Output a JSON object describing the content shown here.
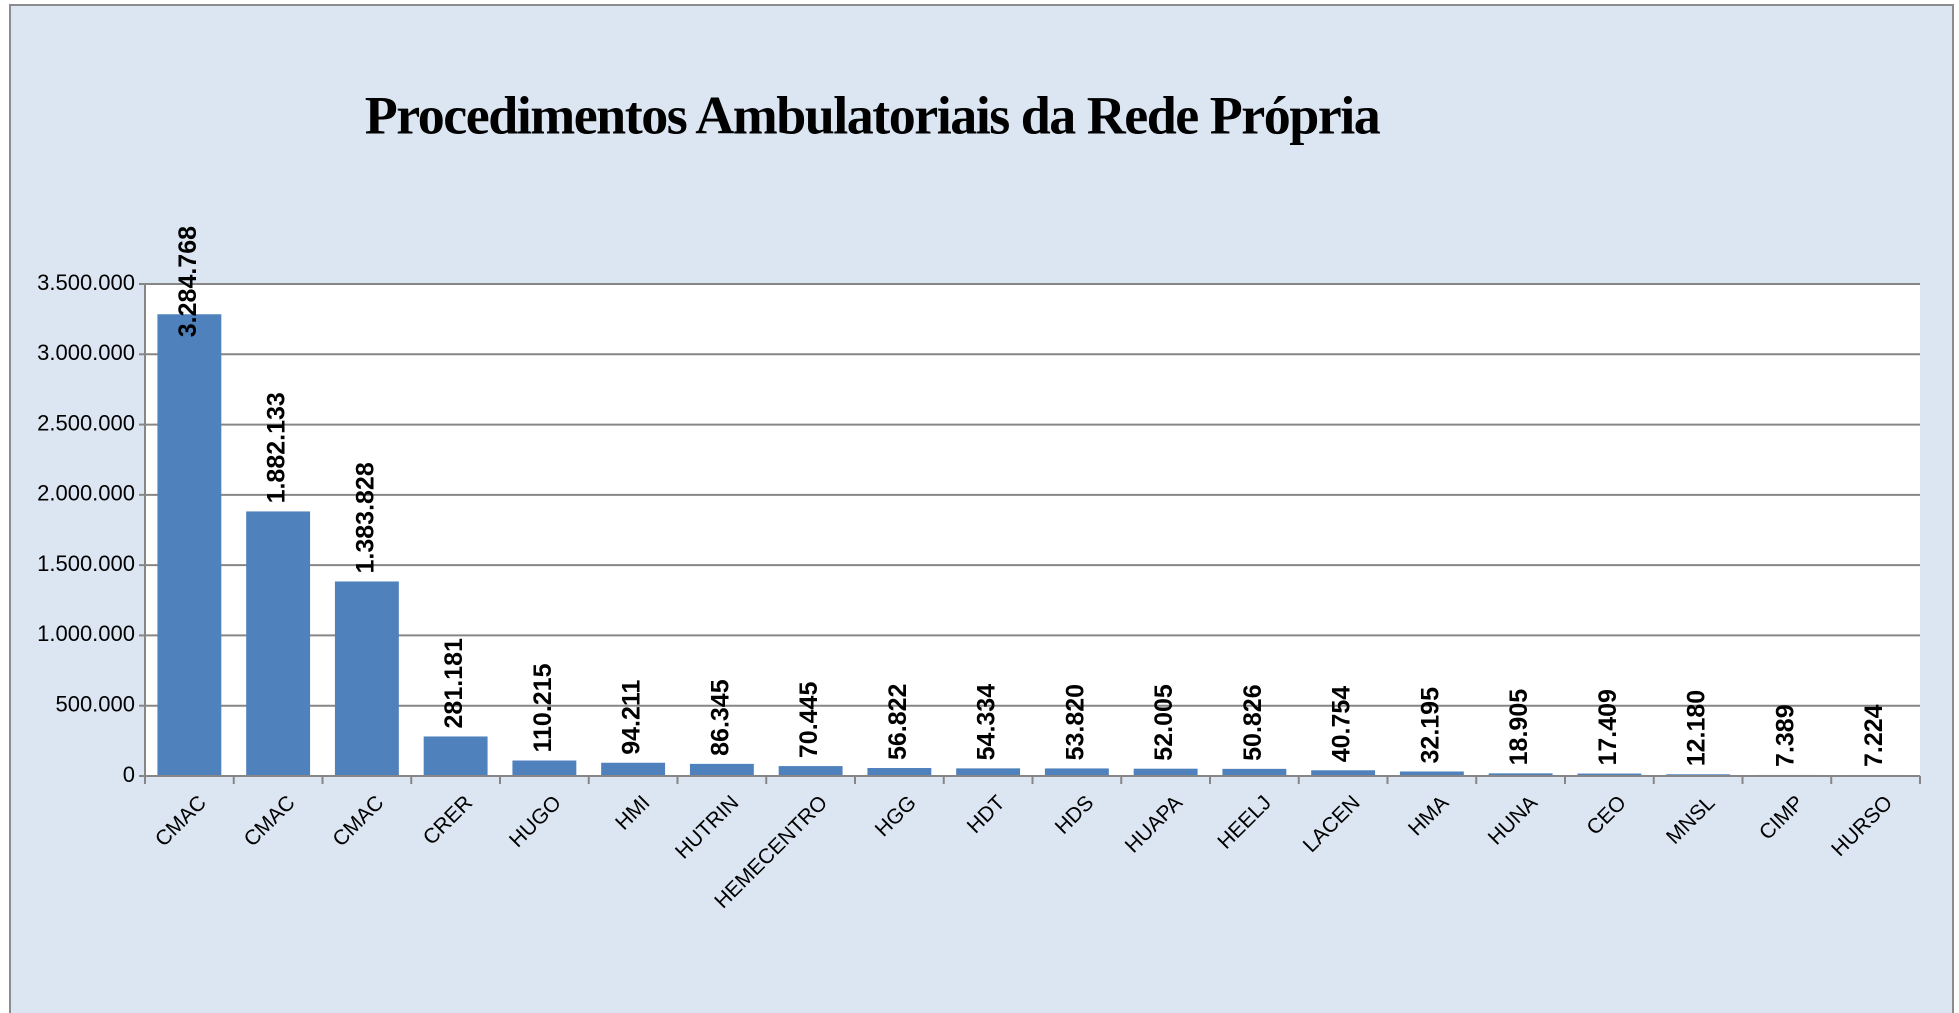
{
  "chart_data": {
    "type": "bar",
    "title": "Procedimentos Ambulatoriais da Rede Própria",
    "categories": [
      "CMAC",
      "CMAC",
      "CMAC",
      "CRER",
      "HUGO",
      "HMI",
      "HUTRIN",
      "HEMECENTRO",
      "HGG",
      "HDT",
      "HDS",
      "HUAPA",
      "HEELJ",
      "LACEN",
      "HMA",
      "HUNA",
      "CEO",
      "MNSL",
      "CIMP",
      "HURSO"
    ],
    "values": [
      3284768,
      1882133,
      1383828,
      281181,
      110215,
      94211,
      86345,
      70445,
      56822,
      54334,
      53820,
      52005,
      50826,
      40754,
      32195,
      18905,
      17409,
      12180,
      7389,
      7224
    ],
    "value_labels": [
      "3.284.768",
      "1.882.133",
      "1.383.828",
      "281.181",
      "110.215",
      "94.211",
      "86.345",
      "70.445",
      "56.822",
      "54.334",
      "53.820",
      "52.005",
      "50.826",
      "40.754",
      "32.195",
      "18.905",
      "17.409",
      "12.180",
      "7.389",
      "7.224"
    ],
    "color": "#4f81bd",
    "ylim": [
      0,
      3500000
    ],
    "yticks": [
      0,
      {
        "value": 500000,
        "label": "500.000"
      },
      {
        "value": 1000000,
        "label": "1.000.000"
      },
      {
        "value": 1500000,
        "label": "1.500.000"
      },
      {
        "value": 2000000,
        "label": "2.000.000"
      },
      {
        "value": 2500000,
        "label": "2.500.000"
      },
      {
        "value": 3000000,
        "label": "3.000.000"
      },
      {
        "value": 3500000,
        "label": "3.500.000"
      }
    ],
    "grid": true
  }
}
